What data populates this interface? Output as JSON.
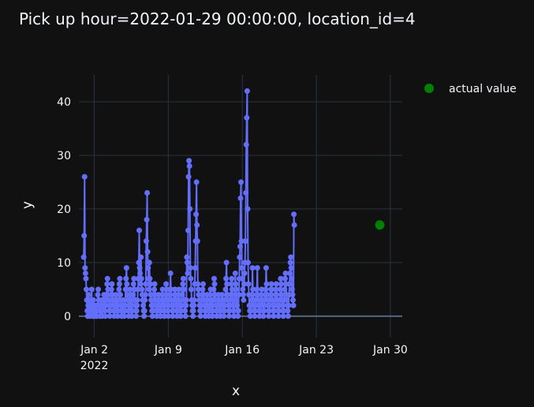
{
  "chart_data": {
    "type": "line",
    "title": "Pick up hour=2022-01-29 00:00:00, location_id=4",
    "xlabel": "x",
    "ylabel": "y",
    "x_range": [
      "2021-12-31T13:00:00",
      "2022-01-31T03:00:00"
    ],
    "ylim": [
      -4,
      45
    ],
    "x_ticks": [
      {
        "date": "2022-01-02",
        "label": "Jan 2",
        "sublabel": "2022"
      },
      {
        "date": "2022-01-09",
        "label": "Jan 9",
        "sublabel": ""
      },
      {
        "date": "2022-01-16",
        "label": "Jan 16",
        "sublabel": ""
      },
      {
        "date": "2022-01-23",
        "label": "Jan 23",
        "sublabel": ""
      },
      {
        "date": "2022-01-30",
        "label": "Jan 30",
        "sublabel": ""
      }
    ],
    "y_ticks": [
      0,
      10,
      20,
      30,
      40
    ],
    "grid": true,
    "legend": {
      "position": "top-right",
      "entries": [
        {
          "name": "actual value",
          "color": "#008000"
        }
      ]
    },
    "series": [
      {
        "color": "#636efa",
        "start": "2022-01-01T00:00:00",
        "step_hours": 1,
        "values": [
          11,
          15,
          26,
          9,
          8,
          7,
          5,
          3,
          1,
          0,
          2,
          4,
          3,
          1,
          0,
          2,
          1,
          3,
          5,
          2,
          0,
          1,
          3,
          2,
          0,
          1,
          2,
          1,
          0,
          1,
          0,
          2,
          4,
          5,
          3,
          2,
          1,
          0,
          1,
          2,
          3,
          1,
          0,
          2,
          1,
          3,
          4,
          2,
          1,
          0,
          2,
          3,
          4,
          6,
          7,
          5,
          3,
          2,
          1,
          0,
          1,
          2,
          4,
          5,
          6,
          4,
          3,
          2,
          1,
          0,
          1,
          2,
          3,
          4,
          3,
          1,
          2,
          0,
          1,
          3,
          5,
          6,
          7,
          4,
          2,
          1,
          0,
          1,
          2,
          3,
          2,
          1,
          0,
          1,
          2,
          5,
          7,
          9,
          6,
          4,
          3,
          1,
          0,
          2,
          3,
          5,
          4,
          2,
          1,
          0,
          1,
          3,
          4,
          6,
          7,
          5,
          3,
          2,
          1,
          0,
          1,
          2,
          3,
          5,
          7,
          10,
          16,
          9,
          8,
          6,
          11,
          7,
          5,
          4,
          3,
          2,
          1,
          0,
          1,
          3,
          4,
          6,
          14,
          18,
          23,
          12,
          9,
          7,
          5,
          10,
          7,
          6,
          4,
          3,
          2,
          1,
          0,
          1,
          2,
          4,
          5,
          6,
          4,
          3,
          2,
          1,
          0,
          1,
          2,
          3,
          4,
          3,
          2,
          1,
          0,
          1,
          2,
          3,
          4,
          5,
          3,
          2,
          1,
          0,
          1,
          3,
          4,
          6,
          5,
          3,
          2,
          1,
          0,
          2,
          3,
          4,
          5,
          8,
          5,
          3,
          2,
          1,
          0,
          1,
          2,
          3,
          4,
          5,
          4,
          3,
          2,
          1,
          0,
          1,
          3,
          4,
          5,
          3,
          2,
          1,
          0,
          1,
          2,
          4,
          5,
          6,
          7,
          5,
          3,
          2,
          1,
          0,
          2,
          3,
          11,
          10,
          8,
          16,
          26,
          29,
          28,
          20,
          9,
          7,
          5,
          3,
          2,
          1,
          0,
          1,
          2,
          3,
          6,
          9,
          14,
          19,
          25,
          17,
          14,
          6,
          5,
          4,
          3,
          2,
          1,
          0,
          1,
          2,
          3,
          4,
          5,
          6,
          4,
          3,
          2,
          1,
          0,
          1,
          2,
          3,
          4,
          3,
          2,
          1,
          0,
          1,
          2,
          4,
          5,
          3,
          2,
          1,
          0,
          1,
          3,
          5,
          7,
          6,
          4,
          3,
          2,
          1,
          0,
          1,
          2,
          3,
          4,
          3,
          2,
          1,
          0,
          1,
          2,
          3,
          4,
          3,
          2,
          1,
          0,
          1,
          2,
          3,
          5,
          7,
          10,
          6,
          4,
          3,
          2,
          1,
          0,
          1,
          2,
          3,
          4,
          6,
          7,
          5,
          3,
          2,
          1,
          0,
          2,
          4,
          8,
          6,
          5,
          3,
          2,
          1,
          0,
          1,
          4,
          7,
          11,
          13,
          22,
          25,
          14,
          9,
          7,
          5,
          4,
          3,
          6,
          8,
          10,
          14,
          23,
          32,
          37,
          42,
          20,
          10,
          6,
          4,
          2,
          1,
          0,
          1,
          2,
          3,
          4,
          9,
          5,
          3,
          2,
          1,
          0,
          1,
          2,
          3,
          4,
          5,
          9,
          4,
          3,
          2,
          1,
          0,
          1,
          2,
          3,
          4,
          5,
          3,
          2,
          1,
          0,
          1,
          2,
          3,
          4,
          5,
          9,
          6,
          4,
          3,
          2,
          1,
          0,
          1,
          2,
          3,
          4,
          5,
          6,
          5,
          3,
          2,
          1,
          0,
          1,
          2,
          3,
          4,
          5,
          6,
          4,
          3,
          2,
          1,
          0,
          1,
          2,
          3,
          5,
          7,
          6,
          4,
          3,
          2,
          1,
          0,
          1,
          3,
          5,
          7,
          8,
          6,
          4,
          3,
          2,
          1,
          0,
          2,
          4,
          6,
          8,
          10,
          11,
          9,
          7,
          5,
          4,
          3,
          2,
          19,
          17
        ]
      },
      {
        "name": "actual value",
        "color": "#008000",
        "x": [
          "2022-01-29T00:00:00"
        ],
        "values": [
          17
        ]
      }
    ]
  }
}
